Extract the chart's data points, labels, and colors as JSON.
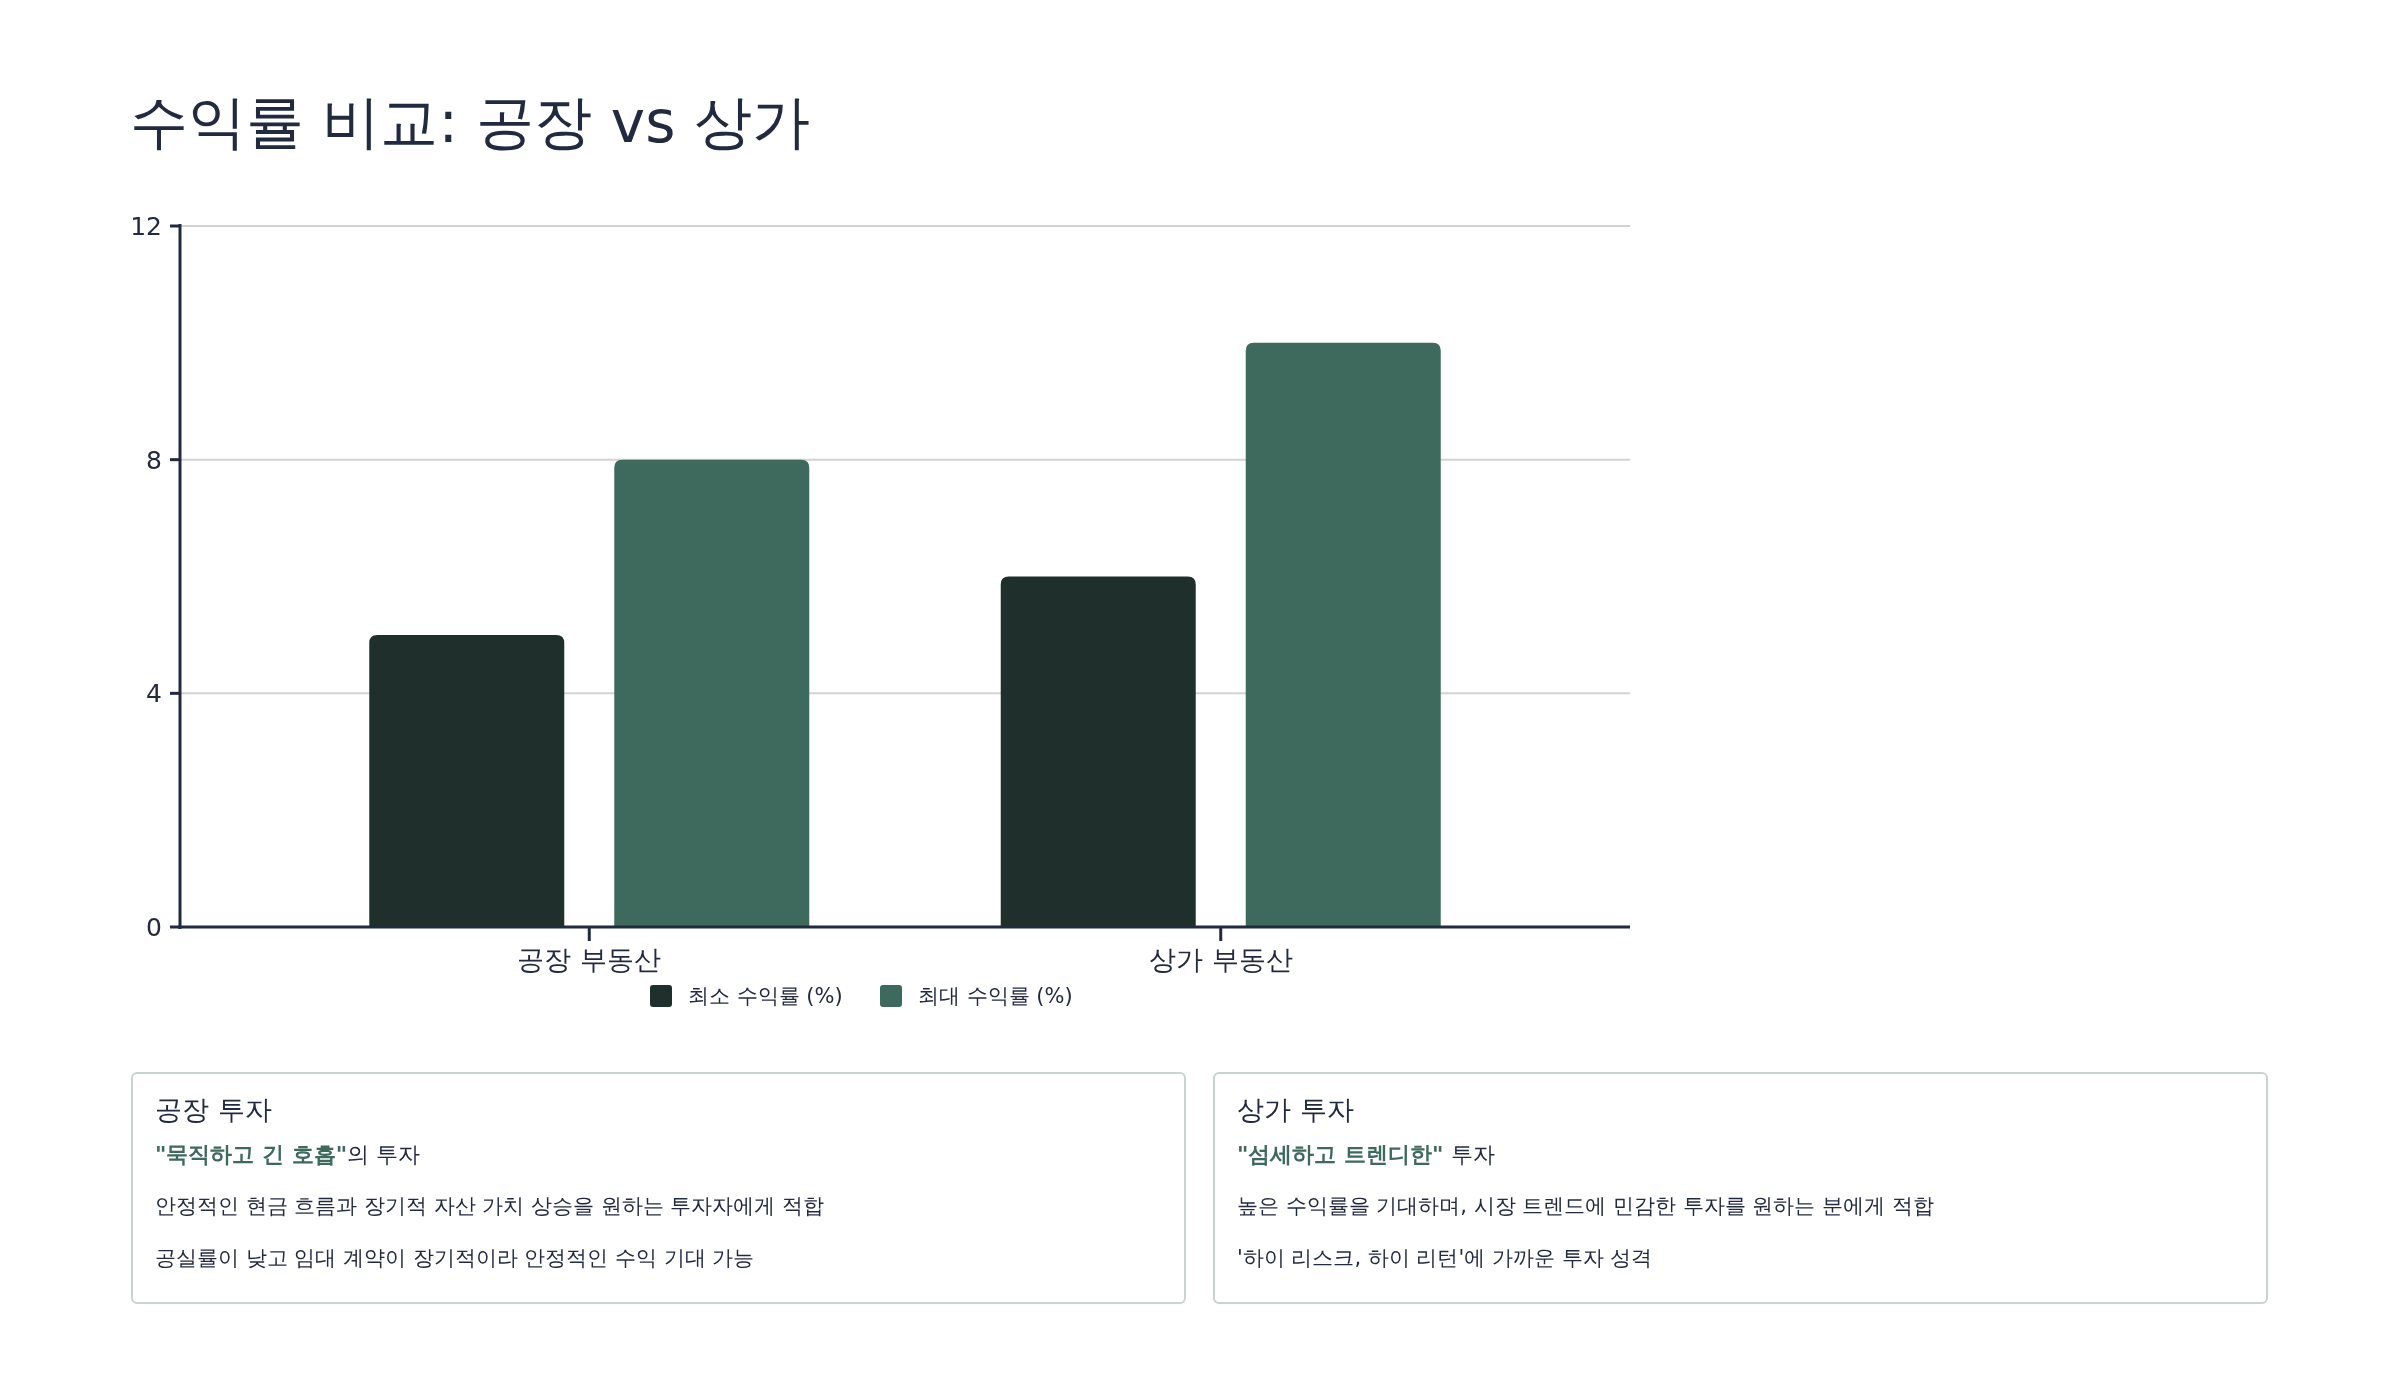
{
  "chart_data": [
    {
      "type": "bar",
      "title": "수익률 비교: 공장 vs 상가",
      "categories": [
        "공장 부동산",
        "상가 부동산"
      ],
      "series": [
        {
          "name": "최소 수익률 (%)",
          "color": "#1f302c",
          "values": [
            5,
            6
          ]
        },
        {
          "name": "최대 수익률 (%)",
          "color": "#3e695d",
          "values": [
            8,
            10
          ]
        }
      ],
      "ylim": [
        0,
        12
      ],
      "yticks": [
        0,
        4,
        8,
        12
      ],
      "grid": "y",
      "legend": "bottom"
    },
    {
      "type": "other",
      "title": "공장 투자",
      "subtitle": "**\"묵직하고 긴 호흡\"**의 투자",
      "annotations": [
        "안정적인 현금 흐름과 장기적 자산 가치 상승을 원하는 투자자에게 적합",
        "공실률이 낮고 임대 계약이 장기적이라 안정적인 수익 기대 가능"
      ]
    },
    {
      "type": "other",
      "title": "상가 투자",
      "subtitle": "**\"섬세하고 트렌디한\"** 투자",
      "annotations": [
        "높은 수익률을 기대하며, 시장 트렌드에 민감한 투자를 원하는 분에게 적합",
        "'하이 리스크, 하이 리턴'에 가까운 투자 성격"
      ]
    }
  ]
}
